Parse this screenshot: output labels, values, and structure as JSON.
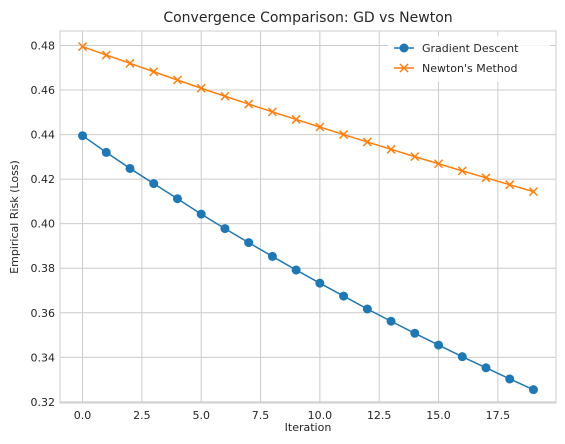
{
  "chart_data": {
    "type": "line",
    "title": "Convergence Comparison: GD vs Newton",
    "xlabel": "Iteration",
    "ylabel": "Empirical Risk (Loss)",
    "x": [
      0,
      1,
      2,
      3,
      4,
      5,
      6,
      7,
      8,
      9,
      10,
      11,
      12,
      13,
      14,
      15,
      16,
      17,
      18,
      19
    ],
    "xlim": [
      -0.95,
      19.95
    ],
    "ylim": [
      0.3195,
      0.4865
    ],
    "xticks": [
      0.0,
      2.5,
      5.0,
      7.5,
      10.0,
      12.5,
      15.0,
      17.5
    ],
    "xtick_labels": [
      "0.0",
      "2.5",
      "5.0",
      "7.5",
      "10.0",
      "12.5",
      "15.0",
      "17.5"
    ],
    "yticks": [
      0.32,
      0.34,
      0.36,
      0.38,
      0.4,
      0.42,
      0.44,
      0.46,
      0.48
    ],
    "ytick_labels": [
      "0.32",
      "0.34",
      "0.36",
      "0.38",
      "0.40",
      "0.42",
      "0.44",
      "0.46",
      "0.48"
    ],
    "grid": true,
    "legend_position": "top-right",
    "series": [
      {
        "name": "Gradient Descent",
        "marker": "circle",
        "color": "#1f77b4",
        "values": [
          0.4395,
          0.432,
          0.4248,
          0.418,
          0.4112,
          0.4043,
          0.3978,
          0.3915,
          0.3853,
          0.3792,
          0.3733,
          0.3675,
          0.3617,
          0.3562,
          0.3508,
          0.3455,
          0.3403,
          0.3353,
          0.3303,
          0.3255
        ]
      },
      {
        "name": "Newton's Method",
        "marker": "x",
        "color": "#ff7f0e",
        "values": [
          0.4795,
          0.4757,
          0.472,
          0.4682,
          0.4645,
          0.4608,
          0.4572,
          0.4537,
          0.4502,
          0.4468,
          0.4434,
          0.44,
          0.4367,
          0.4334,
          0.4301,
          0.4269,
          0.4237,
          0.4206,
          0.4175,
          0.4144
        ]
      }
    ]
  }
}
